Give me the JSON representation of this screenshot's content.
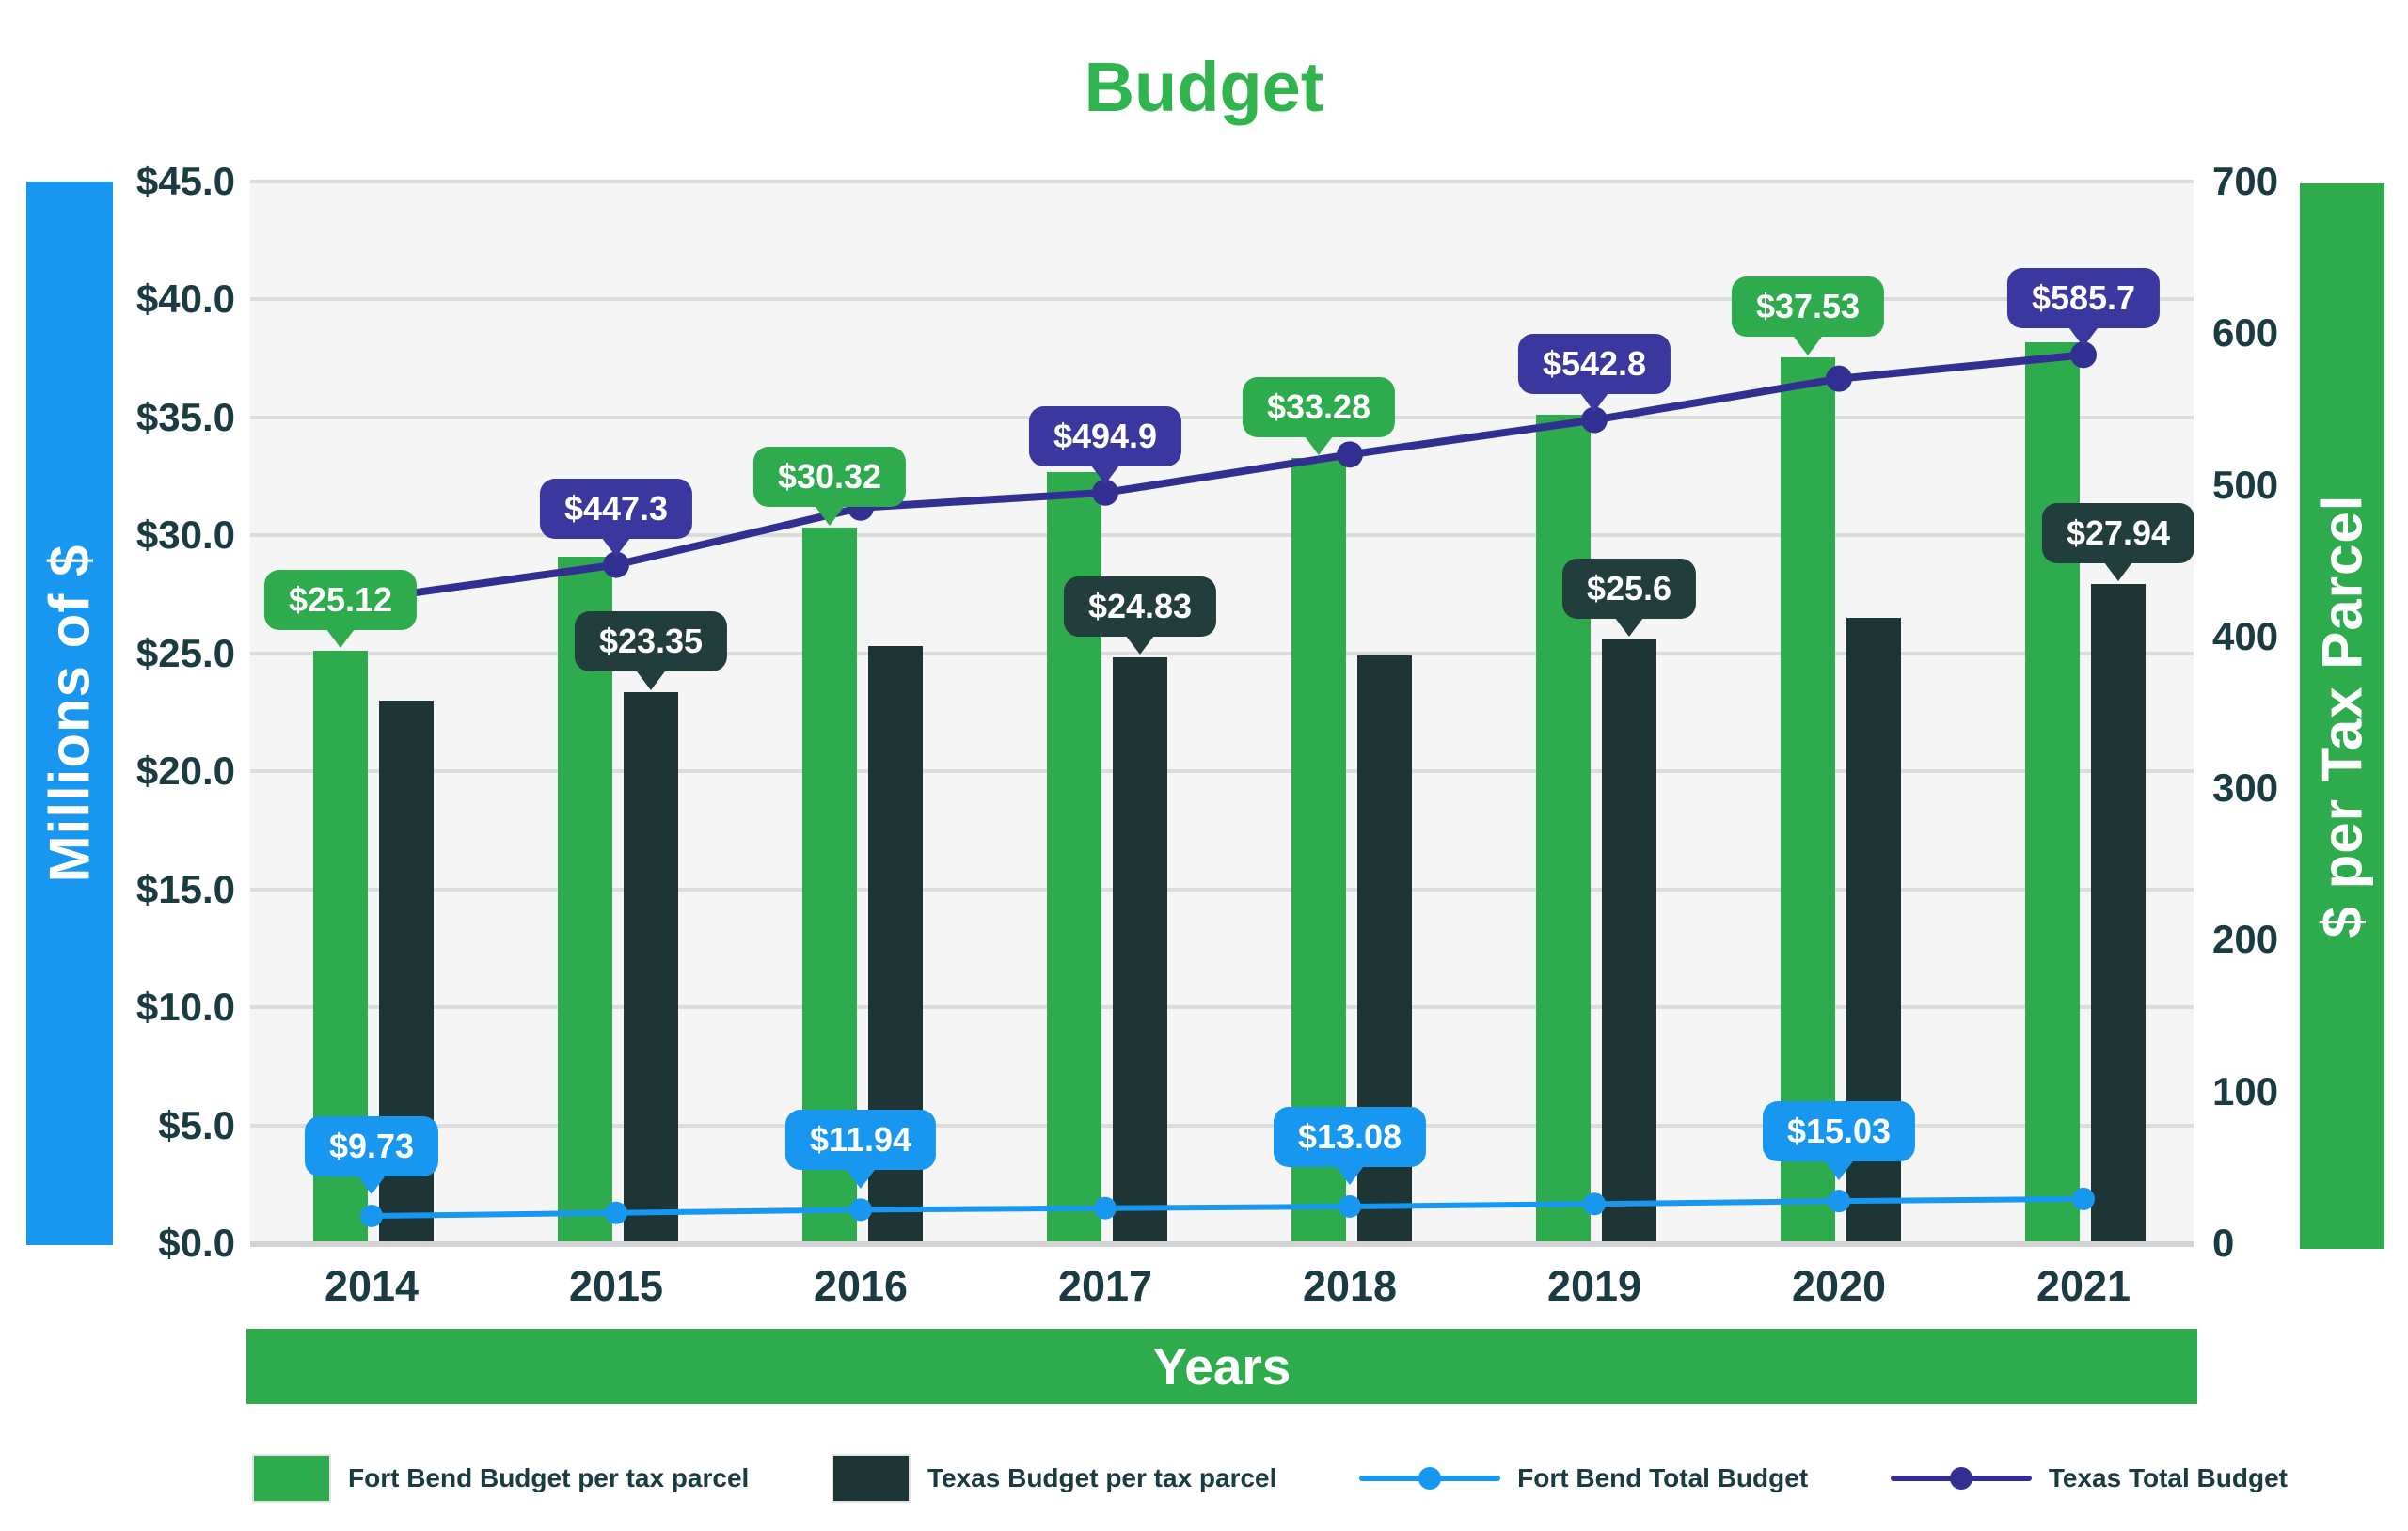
{
  "title": "Budget",
  "left_axis": {
    "band_label": "Millions of $",
    "ticks": [
      "$0.0",
      "$5.0",
      "$10.0",
      "$15.0",
      "$20.0",
      "$25.0",
      "$30.0",
      "$35.0",
      "$40.0",
      "$45.0"
    ],
    "min": 0,
    "max": 45,
    "step": 5
  },
  "right_axis": {
    "band_label": "$ per Tax Parcel",
    "ticks": [
      "0",
      "100",
      "200",
      "300",
      "400",
      "500",
      "600",
      "700"
    ],
    "min": 0,
    "max": 700,
    "step": 100
  },
  "x_axis": {
    "banner_label": "Years",
    "categories": [
      "2014",
      "2015",
      "2016",
      "2017",
      "2018",
      "2019",
      "2020",
      "2021"
    ]
  },
  "chart_data": {
    "type": "combo",
    "categories": [
      "2014",
      "2015",
      "2016",
      "2017",
      "2018",
      "2019",
      "2020",
      "2021"
    ],
    "grid": "horizontal",
    "series": [
      {
        "name": "Fort Bend Budget per tax parcel",
        "type": "bar",
        "axis": "left",
        "color": "#2EAB4C",
        "label_style": "green",
        "values": [
          25.12,
          29.1,
          30.32,
          32.7,
          33.28,
          35.1,
          37.53,
          38.2
        ],
        "data_labels": [
          "$25.12",
          null,
          "$30.32",
          null,
          "$33.28",
          null,
          "$37.53",
          null
        ]
      },
      {
        "name": "Texas Budget per tax parcel",
        "type": "bar",
        "axis": "left",
        "color": "#1D3635",
        "label_style": "dark",
        "values": [
          23.0,
          23.35,
          25.3,
          24.83,
          24.9,
          25.6,
          26.5,
          27.94
        ],
        "data_labels": [
          null,
          "$23.35",
          null,
          "$24.83",
          null,
          "$25.6",
          null,
          "$27.94"
        ]
      },
      {
        "name": "Fort Bend Total Budget",
        "type": "line",
        "axis": "right",
        "color": "#1797F0",
        "label_style": "blue",
        "values": [
          9.73,
          10.8,
          11.94,
          12.5,
          13.08,
          14.0,
          15.03,
          15.8
        ],
        "data_labels": [
          "$9.73",
          null,
          "$11.94",
          null,
          "$13.08",
          null,
          "$15.03",
          null
        ]
      },
      {
        "name": "Texas Total Budget",
        "type": "line",
        "axis": "right",
        "color": "#322F92",
        "label_style": "navy",
        "values": [
          425,
          447.3,
          485,
          494.9,
          520,
          542.8,
          570,
          585.7
        ],
        "data_labels": [
          null,
          "$447.3",
          null,
          "$494.9",
          null,
          "$542.8",
          null,
          "$585.7"
        ]
      }
    ],
    "title": "Budget",
    "xlabel": "Years",
    "ylabel_left": "Millions of $",
    "ylabel_right": "$ per Tax Parcel",
    "ylim_left": [
      0,
      45
    ],
    "ylim_right": [
      0,
      700
    ],
    "legend_position": "bottom"
  },
  "legend": {
    "items": [
      {
        "label": "Fort Bend Budget per tax parcel",
        "marker": "bar",
        "color": "#2EAB4C"
      },
      {
        "label": "Texas Budget per tax parcel",
        "marker": "bar",
        "color": "#1D3635"
      },
      {
        "label": "Fort Bend Total Budget",
        "marker": "line",
        "color": "#1797F0"
      },
      {
        "label": "Texas Total Budget",
        "marker": "line",
        "color": "#322F92"
      }
    ]
  },
  "colors": {
    "green": "#2EAB4C",
    "dark_teal": "#1D3635",
    "navy": "#322F92",
    "blue": "#1797F0",
    "title_green": "#2FB44E",
    "axis_text": "#1B3B42",
    "plot_bg": "#F5F5F5",
    "grid": "#DCDCDC"
  }
}
